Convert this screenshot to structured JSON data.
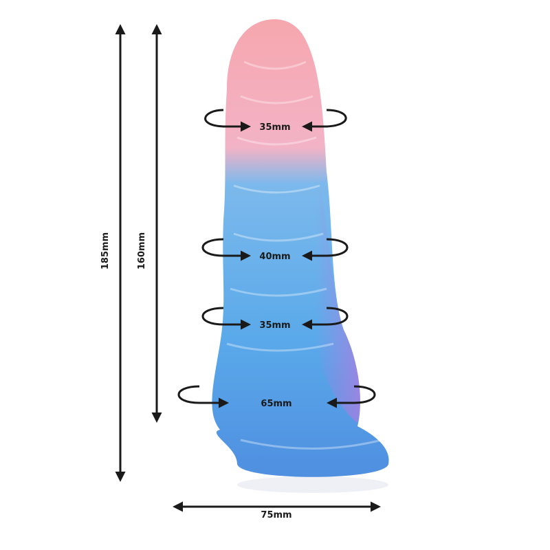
{
  "dimensions": {
    "total_length": "185mm",
    "insertable_length": "160mm",
    "base_width": "75mm",
    "circumferences": [
      "35mm",
      "40mm",
      "35mm",
      "65mm"
    ]
  },
  "colors": {
    "top": "#f5a9b0",
    "middle": "#5fb2ec",
    "accent": "#b57be0",
    "arrow": "#1a1a1a"
  }
}
